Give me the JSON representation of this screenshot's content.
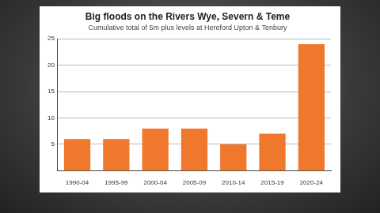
{
  "chart_data": {
    "type": "bar",
    "title": "Big floods on the Rivers Wye, Severn & Teme",
    "subtitle": "Cumulative total of 5m plus levels at Hereford Upton & Tenbury",
    "categories": [
      "1990-04",
      "1995-99",
      "2000-04",
      "2005-09",
      "2010-14",
      "2015-19",
      "2020-24"
    ],
    "values": [
      6,
      6,
      8,
      8,
      5,
      7,
      24
    ],
    "color": "#f0782d",
    "ylim": [
      0,
      25
    ],
    "yticks": [
      5,
      10,
      15,
      20,
      25
    ],
    "grid": true
  }
}
